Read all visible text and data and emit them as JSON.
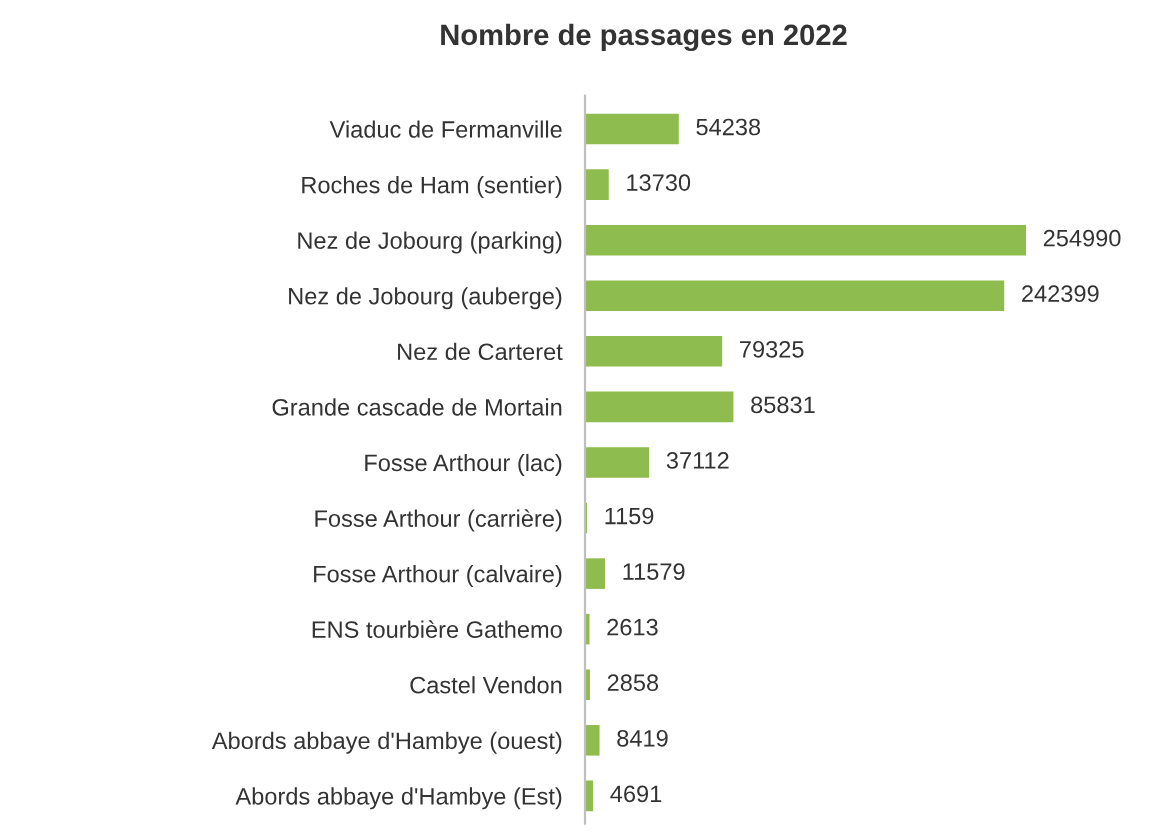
{
  "chart_data": {
    "type": "bar",
    "orientation": "horizontal",
    "title": "Nombre de passages en 2022",
    "categories": [
      "Viaduc de Fermanville",
      "Roches de Ham (sentier)",
      "Nez de Jobourg (parking)",
      "Nez de Jobourg (auberge)",
      "Nez de Carteret",
      "Grande cascade de Mortain",
      "Fosse Arthour (lac)",
      "Fosse Arthour (carrière)",
      "Fosse Arthour (calvaire)",
      "ENS tourbière Gathemo",
      "Castel Vendon",
      "Abords abbaye d'Hambye (ouest)",
      "Abords abbaye d'Hambye (Est)"
    ],
    "values": [
      54238,
      13730,
      254990,
      242399,
      79325,
      85831,
      37112,
      1159,
      11579,
      2613,
      2858,
      8419,
      4691
    ],
    "color": "#8fbc4f",
    "data_labels": true,
    "tick_labels": "y",
    "grid": false,
    "legend": false
  }
}
